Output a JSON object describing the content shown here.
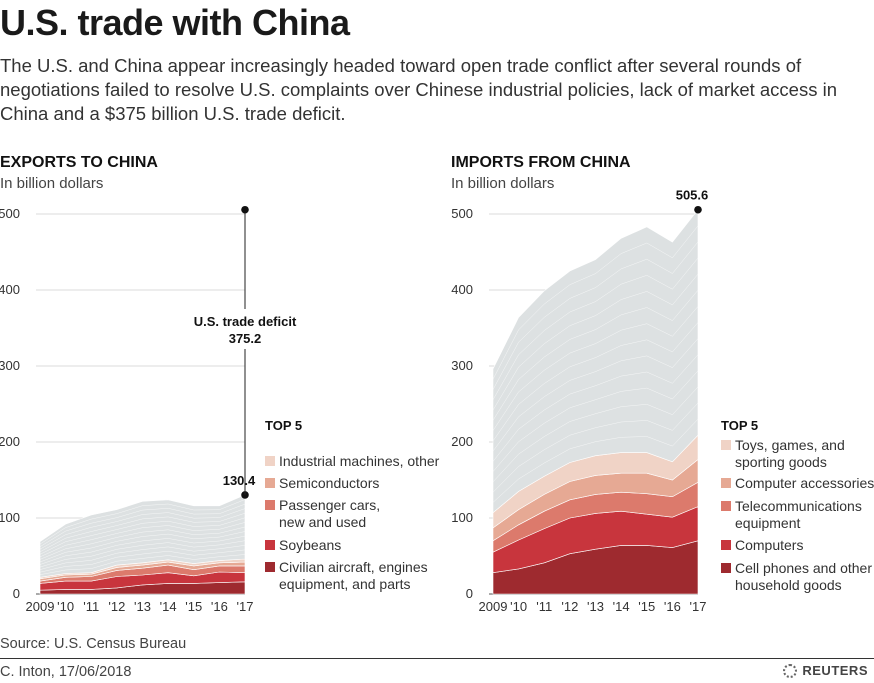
{
  "header": {
    "title": "U.S. trade with China",
    "subtitle": "The U.S. and China appear increasingly headed toward open trade conflict after several rounds of negotiations failed to resolve U.S. complaints over Chinese industrial policies, lack of market access in China and a $375 billion U.S. trade deficit."
  },
  "panels": {
    "exports": {
      "heading": "EXPORTS TO CHINA",
      "unit": "In billion dollars"
    },
    "imports": {
      "heading": "IMPORTS FROM CHINA",
      "unit": "In billion dollars"
    }
  },
  "footer": {
    "source": "Source: U.S. Census Bureau",
    "credit": "C. Inton, 17/06/2018",
    "logo": "REUTERS"
  },
  "chart_data": [
    {
      "type": "area",
      "stacked": true,
      "title": "EXPORTS TO CHINA",
      "ylabel": "In billion dollars",
      "x": [
        "2009",
        "'10",
        "'11",
        "'12",
        "'13",
        "'14",
        "'15",
        "'16",
        "'17"
      ],
      "ylim": [
        0,
        500
      ],
      "yticks": [
        0,
        100,
        200,
        300,
        400,
        500
      ],
      "grid": true,
      "legend_title": "TOP 5",
      "legend_position": "right",
      "series": [
        {
          "name": "Civilian aircraft, engines equipment, and parts",
          "color": "#9e2a2f",
          "values": [
            5,
            6,
            6,
            8,
            12,
            14,
            14,
            15,
            16
          ]
        },
        {
          "name": "Soybeans",
          "color": "#c8353d",
          "values": [
            9,
            11,
            11,
            15,
            13,
            14,
            10,
            14,
            12
          ]
        },
        {
          "name": "Passenger cars, new and used",
          "color": "#dc7a6c",
          "values": [
            3,
            5,
            6,
            8,
            9,
            10,
            8,
            8,
            9
          ]
        },
        {
          "name": "Semiconductors",
          "color": "#e6a994",
          "values": [
            3,
            3,
            3,
            4,
            4,
            4,
            5,
            4,
            5
          ]
        },
        {
          "name": "Industrial machines, other",
          "color": "#f0d3c6",
          "values": [
            2,
            2,
            2,
            3,
            3,
            3,
            3,
            3,
            4
          ]
        },
        {
          "name": "",
          "color": "#dde1e2",
          "values": [
            47,
            65,
            76,
            73,
            81,
            79,
            76,
            72,
            84.4
          ]
        }
      ],
      "totals": [
        69,
        92,
        104,
        111,
        122,
        124,
        116,
        116,
        130.4
      ],
      "annotations": [
        {
          "x": "'17",
          "y": 130.4,
          "label": "130.4"
        },
        {
          "label": "U.S. trade deficit",
          "value": "375.2"
        }
      ]
    },
    {
      "type": "area",
      "stacked": true,
      "title": "IMPORTS FROM CHINA",
      "ylabel": "In billion dollars",
      "x": [
        "2009",
        "'10",
        "'11",
        "'12",
        "'13",
        "'14",
        "'15",
        "'16",
        "'17"
      ],
      "ylim": [
        0,
        500
      ],
      "yticks": [
        0,
        100,
        200,
        300,
        400,
        500
      ],
      "grid": true,
      "legend_title": "TOP 5",
      "legend_position": "right",
      "series": [
        {
          "name": "Cell phones and other household goods",
          "color": "#9e2a2f",
          "values": [
            28,
            33,
            41,
            53,
            59,
            64,
            64,
            61,
            70
          ]
        },
        {
          "name": "Computers",
          "color": "#c8353d",
          "values": [
            27,
            38,
            45,
            47,
            47,
            45,
            41,
            40,
            45
          ]
        },
        {
          "name": "Telecommunications equipment",
          "color": "#dc7a6c",
          "values": [
            15,
            20,
            23,
            24,
            25,
            25,
            27,
            27,
            32
          ]
        },
        {
          "name": "Computer accessories",
          "color": "#e6a994",
          "values": [
            17,
            20,
            22,
            24,
            25,
            25,
            27,
            22,
            30
          ]
        },
        {
          "name": "Toys, games, and sporting goods",
          "color": "#f0d3c6",
          "values": [
            20,
            24,
            24,
            25,
            26,
            27,
            27,
            24,
            32
          ]
        },
        {
          "name": "",
          "color": "#dde1e2",
          "values": [
            189,
            229,
            244,
            252,
            258,
            282,
            297,
            289,
            296.6
          ]
        }
      ],
      "totals": [
        296,
        364,
        399,
        425,
        440,
        468,
        483,
        463,
        505.6
      ],
      "annotations": [
        {
          "x": "'17",
          "y": 505.6,
          "label": "505.6"
        }
      ]
    }
  ]
}
